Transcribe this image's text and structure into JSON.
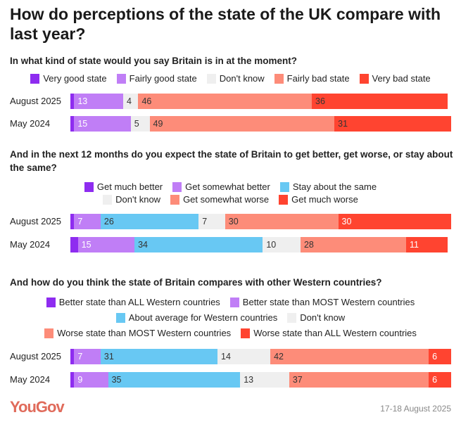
{
  "title": "How do perceptions of the state of the UK compare with last year?",
  "footer": {
    "logo": "YouGov",
    "date": "17-18 August 2025"
  },
  "chart_data": [
    {
      "type": "bar",
      "orientation": "horizontal",
      "stacked": true,
      "title": "In what kind of state would you say Britain is in at the moment?",
      "categories": [
        "August 2025",
        "May 2024"
      ],
      "series": [
        {
          "name": "Very good state",
          "color": "#8e2cf0",
          "values": [
            1,
            1
          ],
          "labelled": false
        },
        {
          "name": "Fairly good state",
          "color": "#c07ef6",
          "values": [
            13,
            15
          ]
        },
        {
          "name": "Don't know",
          "color": "#efefef",
          "values": [
            4,
            5
          ]
        },
        {
          "name": "Fairly bad state",
          "color": "#fd8c79",
          "values": [
            46,
            49
          ]
        },
        {
          "name": "Very bad state",
          "color": "#ff4430",
          "values": [
            36,
            31
          ]
        }
      ],
      "legend_rows": [
        [
          0,
          1,
          2,
          3,
          4
        ]
      ]
    },
    {
      "type": "bar",
      "orientation": "horizontal",
      "stacked": true,
      "title": "And in the next 12 months do you expect the state of Britain to get better, get worse, or stay about the same?",
      "categories": [
        "August 2025",
        "May 2024"
      ],
      "series": [
        {
          "name": "Get much better",
          "color": "#8e2cf0",
          "values": [
            1,
            2
          ],
          "labelled": false
        },
        {
          "name": "Get somewhat better",
          "color": "#c07ef6",
          "values": [
            7,
            15
          ]
        },
        {
          "name": "Stay about the same",
          "color": "#68c8f3",
          "values": [
            26,
            34
          ]
        },
        {
          "name": "Don't know",
          "color": "#efefef",
          "values": [
            7,
            10
          ]
        },
        {
          "name": "Get somewhat worse",
          "color": "#fd8c79",
          "values": [
            30,
            28
          ]
        },
        {
          "name": "Get much worse",
          "color": "#ff4430",
          "values": [
            30,
            11
          ]
        }
      ],
      "legend_rows": [
        [
          0,
          1,
          2
        ],
        [
          3,
          4,
          5
        ]
      ]
    },
    {
      "type": "bar",
      "orientation": "horizontal",
      "stacked": true,
      "title": "And how do you think the state of Britain compares with other Western countries?",
      "categories": [
        "August 2025",
        "May 2024"
      ],
      "series": [
        {
          "name": "Better state than ALL Western countries",
          "color": "#8e2cf0",
          "values": [
            1,
            1
          ],
          "labelled": false
        },
        {
          "name": "Better state than MOST Western countries",
          "color": "#c07ef6",
          "values": [
            7,
            9
          ]
        },
        {
          "name": "About average for Western countries",
          "color": "#68c8f3",
          "values": [
            31,
            35
          ]
        },
        {
          "name": "Don't know",
          "color": "#efefef",
          "values": [
            14,
            13
          ]
        },
        {
          "name": "Worse state than MOST Western countries",
          "color": "#fd8c79",
          "values": [
            42,
            37
          ]
        },
        {
          "name": "Worse state than ALL Western countries",
          "color": "#ff4430",
          "values": [
            6,
            6
          ]
        }
      ],
      "legend_rows": [
        [
          0,
          1
        ],
        [
          2,
          3
        ],
        [
          4,
          5
        ]
      ]
    }
  ]
}
